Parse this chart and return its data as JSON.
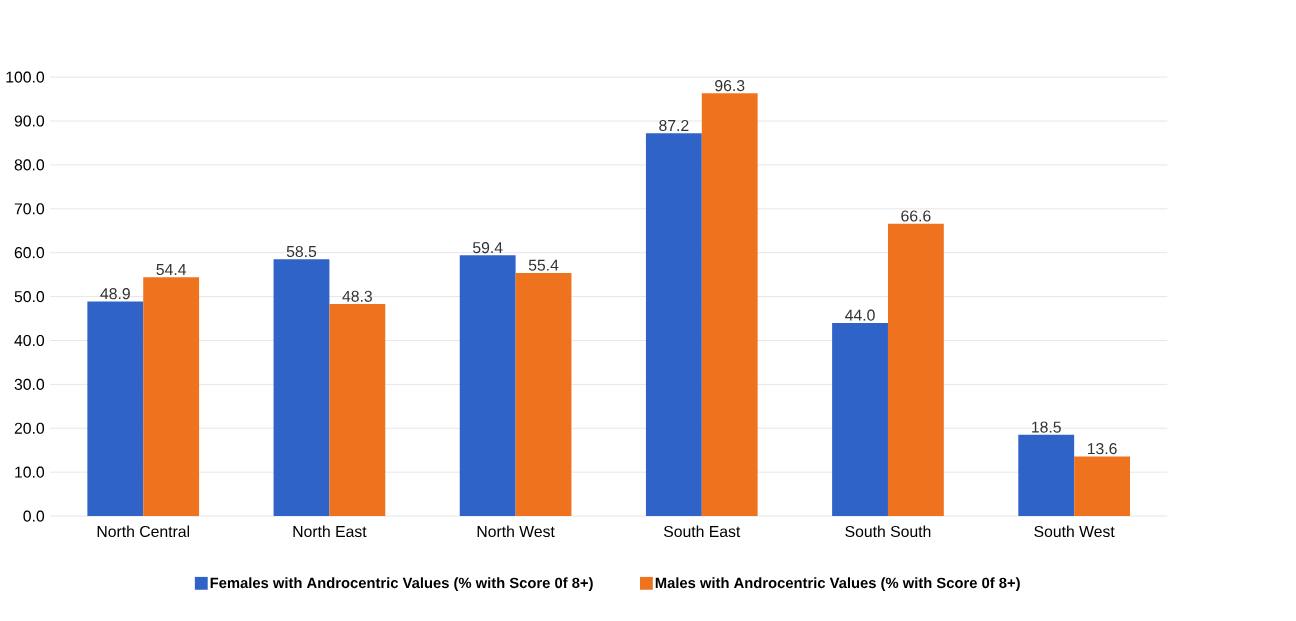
{
  "chart_data": {
    "type": "bar",
    "categories": [
      "North Central",
      "North East",
      "North West",
      "South East",
      "South South",
      "South West"
    ],
    "series": [
      {
        "name": "Females with Androcentric Values (% with Score 0f 8+)",
        "color": "#2f63c8",
        "values": [
          48.9,
          58.5,
          59.4,
          87.2,
          44.0,
          18.5
        ],
        "value_labels": [
          "48.9",
          "58.5",
          "59.4",
          "87.2",
          "44.0",
          "18.5"
        ]
      },
      {
        "name": "Males with Androcentric Values (% with Score 0f 8+)",
        "color": "#ef731f",
        "values": [
          54.4,
          48.3,
          55.4,
          96.3,
          66.6,
          13.6
        ],
        "value_labels": [
          "54.4",
          "48.3",
          "55.4",
          "96.3",
          "66.6",
          "13.6"
        ]
      }
    ],
    "ylim": [
      0,
      100
    ],
    "yticks": [
      {
        "value": 0,
        "label": "0.0"
      },
      {
        "value": 10,
        "label": "10.0"
      },
      {
        "value": 20,
        "label": "20.0"
      },
      {
        "value": 30,
        "label": "30.0"
      },
      {
        "value": 40,
        "label": "40.0"
      },
      {
        "value": 50,
        "label": "50.0"
      },
      {
        "value": 60,
        "label": "60.0"
      },
      {
        "value": 70,
        "label": "70.0"
      },
      {
        "value": 80,
        "label": "80.0"
      },
      {
        "value": 90,
        "label": "90.0"
      },
      {
        "value": 100,
        "label": "100.0"
      }
    ],
    "grid": "y",
    "legend": "bottom"
  }
}
